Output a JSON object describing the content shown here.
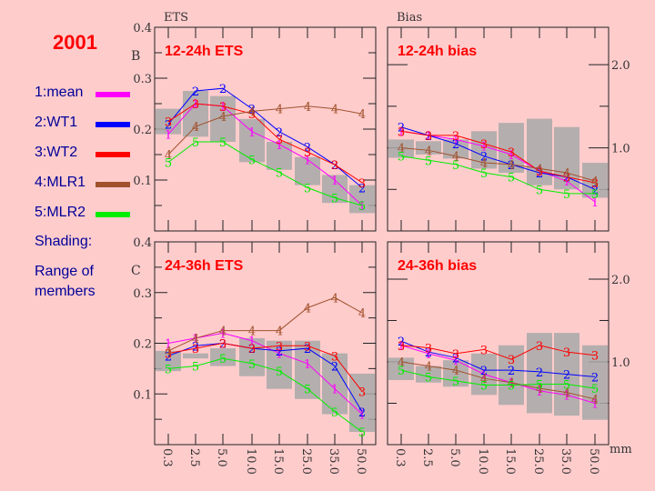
{
  "year_label": "2001",
  "legend": {
    "items": [
      {
        "label": "1:mean",
        "color": "#ff00ff",
        "marker": "1"
      },
      {
        "label": "2:WT1",
        "color": "#0000ff",
        "marker": "2"
      },
      {
        "label": "3:WT2",
        "color": "#ff0000",
        "marker": "3"
      },
      {
        "label": "4:MLR1",
        "color": "#a0522d",
        "marker": "4"
      },
      {
        "label": "5:MLR2",
        "color": "#00ee00",
        "marker": "5"
      }
    ],
    "shading_label": "Shading:",
    "shading_desc_1": "Range of",
    "shading_desc_2": "members"
  },
  "chart_data": [
    {
      "type": "line",
      "title": "12-24h ETS",
      "column_header": "ETS",
      "row_label": "B",
      "categories": [
        "0.3",
        "2.5",
        "5.0",
        "10.0",
        "15.0",
        "25.0",
        "35.0",
        "50.0"
      ],
      "ylim": [
        0,
        0.4
      ],
      "yticks": [
        "0.1",
        "0.2",
        "0.3",
        "0.4"
      ],
      "series": [
        {
          "name": "1:mean",
          "values": [
            0.19,
            0.25,
            0.245,
            0.195,
            0.17,
            0.14,
            0.1,
            0.05
          ]
        },
        {
          "name": "2:WT1",
          "values": [
            0.21,
            0.275,
            0.28,
            0.24,
            0.195,
            0.165,
            0.13,
            0.085
          ]
        },
        {
          "name": "3:WT2",
          "values": [
            0.215,
            0.25,
            0.245,
            0.23,
            0.18,
            0.155,
            0.13,
            0.095
          ]
        },
        {
          "name": "4:MLR1",
          "values": [
            0.15,
            0.205,
            0.225,
            0.235,
            0.24,
            0.245,
            0.24,
            0.23
          ]
        },
        {
          "name": "5:MLR2",
          "values": [
            0.135,
            0.175,
            0.175,
            0.14,
            0.115,
            0.085,
            0.065,
            0.05
          ]
        }
      ],
      "member_range": [
        [
          0.19,
          0.24
        ],
        [
          0.185,
          0.275
        ],
        [
          0.175,
          0.265
        ],
        [
          0.135,
          0.22
        ],
        [
          0.12,
          0.175
        ],
        [
          0.09,
          0.145
        ],
        [
          0.055,
          0.11
        ],
        [
          0.035,
          0.09
        ]
      ]
    },
    {
      "type": "line",
      "title": "12-24h bias",
      "column_header": "Bias",
      "categories": [
        "0.3",
        "2.5",
        "5.0",
        "10.0",
        "15.0",
        "25.0",
        "35.0",
        "50.0"
      ],
      "ylim": [
        0.0,
        2.45
      ],
      "yticks": [
        "1.0",
        "2.0"
      ],
      "series": [
        {
          "name": "1:mean",
          "values": [
            1.2,
            1.15,
            1.1,
            1.02,
            0.92,
            0.72,
            0.6,
            0.35
          ]
        },
        {
          "name": "2:WT1",
          "values": [
            1.25,
            1.15,
            1.05,
            0.9,
            0.8,
            0.7,
            0.65,
            0.5
          ]
        },
        {
          "name": "3:WT2",
          "values": [
            1.2,
            1.15,
            1.15,
            1.05,
            0.95,
            0.72,
            0.65,
            0.58
          ]
        },
        {
          "name": "4:MLR1",
          "values": [
            1.0,
            0.97,
            0.9,
            0.82,
            0.8,
            0.75,
            0.7,
            0.6
          ]
        },
        {
          "name": "5:MLR2",
          "values": [
            0.9,
            0.85,
            0.8,
            0.7,
            0.65,
            0.5,
            0.45,
            0.45
          ]
        }
      ],
      "member_range": [
        [
          0.88,
          1.1
        ],
        [
          0.92,
          1.08
        ],
        [
          0.87,
          1.1
        ],
        [
          0.75,
          1.2
        ],
        [
          0.7,
          1.3
        ],
        [
          0.55,
          1.35
        ],
        [
          0.5,
          1.25
        ],
        [
          0.4,
          0.82
        ]
      ]
    },
    {
      "type": "line",
      "title": "24-36h ETS",
      "row_label": "C",
      "categories": [
        "0.3",
        "2.5",
        "5.0",
        "10.0",
        "15.0",
        "25.0",
        "35.0",
        "50.0"
      ],
      "ylim": [
        0,
        0.4
      ],
      "yticks": [
        "0.1",
        "0.2",
        "0.3",
        "0.4"
      ],
      "series": [
        {
          "name": "1:mean",
          "values": [
            0.2,
            0.21,
            0.22,
            0.205,
            0.18,
            0.16,
            0.11,
            0.06
          ]
        },
        {
          "name": "2:WT1",
          "values": [
            0.175,
            0.195,
            0.2,
            0.19,
            0.185,
            0.19,
            0.155,
            0.065
          ]
        },
        {
          "name": "3:WT2",
          "values": [
            0.18,
            0.19,
            0.2,
            0.19,
            0.195,
            0.195,
            0.175,
            0.105
          ]
        },
        {
          "name": "4:MLR1",
          "values": [
            0.185,
            0.21,
            0.225,
            0.225,
            0.225,
            0.27,
            0.29,
            0.26
          ]
        },
        {
          "name": "5:MLR2",
          "values": [
            0.15,
            0.155,
            0.17,
            0.16,
            0.145,
            0.11,
            0.065,
            0.025
          ]
        }
      ],
      "member_range": [
        [
          0.145,
          0.185
        ],
        [
          0.17,
          0.18
        ],
        [
          0.155,
          0.19
        ],
        [
          0.135,
          0.21
        ],
        [
          0.11,
          0.205
        ],
        [
          0.09,
          0.205
        ],
        [
          0.06,
          0.18
        ],
        [
          0.025,
          0.14
        ]
      ]
    },
    {
      "type": "line",
      "title": "24-36h bias",
      "xlabel": "mm",
      "categories": [
        "0.3",
        "2.5",
        "5.0",
        "10.0",
        "15.0",
        "25.0",
        "35.0",
        "50.0"
      ],
      "ylim": [
        0.0,
        2.45
      ],
      "yticks": [
        "1.0",
        "2.0"
      ],
      "series": [
        {
          "name": "1:mean",
          "values": [
            1.2,
            1.1,
            1.02,
            0.85,
            0.75,
            0.65,
            0.6,
            0.5
          ]
        },
        {
          "name": "2:WT1",
          "values": [
            1.25,
            1.12,
            1.05,
            0.9,
            0.9,
            0.88,
            0.85,
            0.82
          ]
        },
        {
          "name": "3:WT2",
          "values": [
            1.2,
            1.17,
            1.1,
            1.15,
            1.03,
            1.2,
            1.12,
            1.08
          ]
        },
        {
          "name": "4:MLR1",
          "values": [
            1.0,
            0.95,
            0.9,
            0.8,
            0.75,
            0.68,
            0.63,
            0.55
          ]
        },
        {
          "name": "5:MLR2",
          "values": [
            0.9,
            0.82,
            0.77,
            0.72,
            0.72,
            0.73,
            0.73,
            0.68
          ]
        }
      ],
      "member_range": [
        [
          0.78,
          1.05
        ],
        [
          0.75,
          0.95
        ],
        [
          0.7,
          1.02
        ],
        [
          0.6,
          1.1
        ],
        [
          0.48,
          1.2
        ],
        [
          0.38,
          1.35
        ],
        [
          0.35,
          1.35
        ],
        [
          0.3,
          1.2
        ]
      ]
    }
  ]
}
